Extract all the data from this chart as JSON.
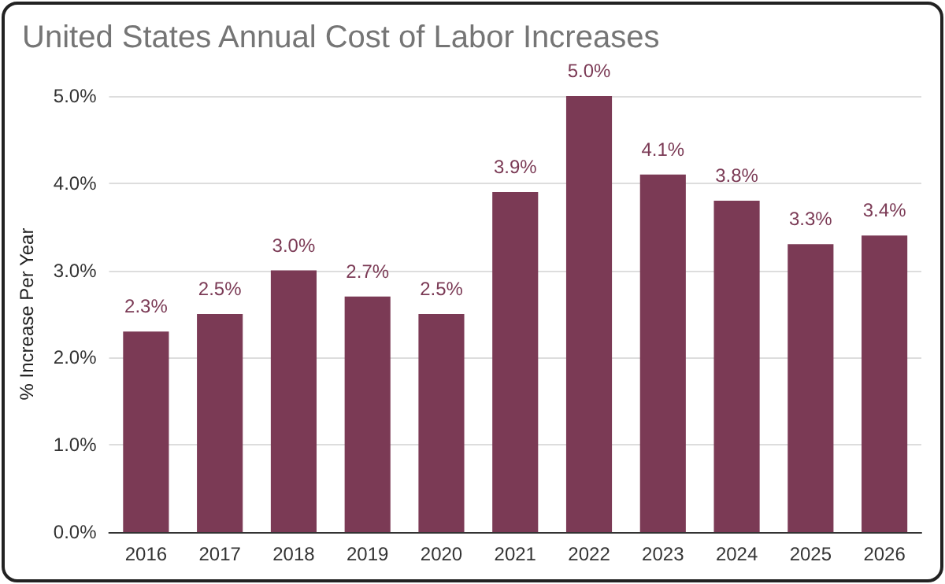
{
  "chart_data": {
    "type": "bar",
    "title": "United States Annual Cost of Labor Increases",
    "ylabel": "% Increase Per Year",
    "categories": [
      "2016",
      "2017",
      "2018",
      "2019",
      "2020",
      "2021",
      "2022",
      "2023",
      "2024",
      "2025",
      "2026"
    ],
    "values": [
      2.3,
      2.5,
      3.0,
      2.7,
      2.5,
      3.9,
      5.0,
      4.1,
      3.8,
      3.3,
      3.4
    ],
    "value_labels": [
      "2.3%",
      "2.5%",
      "3.0%",
      "2.7%",
      "2.5%",
      "3.9%",
      "5.0%",
      "4.1%",
      "3.8%",
      "3.3%",
      "3.4%"
    ],
    "color": "#7b3a55",
    "ylim": [
      0,
      5
    ],
    "yticks": [
      {
        "value": 0,
        "label": "0.0%"
      },
      {
        "value": 1,
        "label": "1.0%"
      },
      {
        "value": 2,
        "label": "2.0%"
      },
      {
        "value": 3,
        "label": "3.0%"
      },
      {
        "value": 4,
        "label": "4.0%"
      },
      {
        "value": 5,
        "label": "5.0%"
      }
    ],
    "grid": "y"
  }
}
